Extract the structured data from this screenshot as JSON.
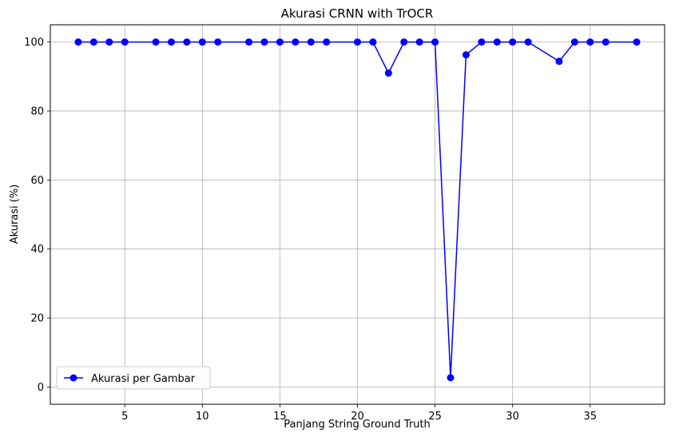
{
  "chart_data": {
    "type": "line",
    "title": "Akurasi CRNN with TrOCR",
    "xlabel": "Panjang String Ground Truth",
    "ylabel": "Akurasi (%)",
    "xlim": [
      0.2,
      39.8
    ],
    "ylim": [
      -5,
      105
    ],
    "xticks": [
      5,
      10,
      15,
      20,
      25,
      30,
      35
    ],
    "yticks": [
      0,
      20,
      40,
      60,
      80,
      100
    ],
    "grid": true,
    "legend_position": "lower-left",
    "series": [
      {
        "name": "Akurasi per Gambar",
        "color": "#0000ff",
        "marker": "circle",
        "x": [
          2,
          3,
          4,
          5,
          7,
          8,
          9,
          10,
          11,
          13,
          14,
          15,
          16,
          17,
          18,
          20,
          21,
          22,
          23,
          24,
          25,
          26,
          27,
          28,
          29,
          30,
          31,
          33,
          34,
          35,
          36,
          38
        ],
        "y": [
          100,
          100,
          100,
          100,
          100,
          100,
          100,
          100,
          100,
          100,
          100,
          100,
          100,
          100,
          100,
          100,
          100,
          91,
          100,
          100,
          100,
          2.7,
          96.3,
          100,
          100,
          100,
          100,
          94.4,
          100,
          100,
          100,
          100
        ]
      }
    ]
  }
}
